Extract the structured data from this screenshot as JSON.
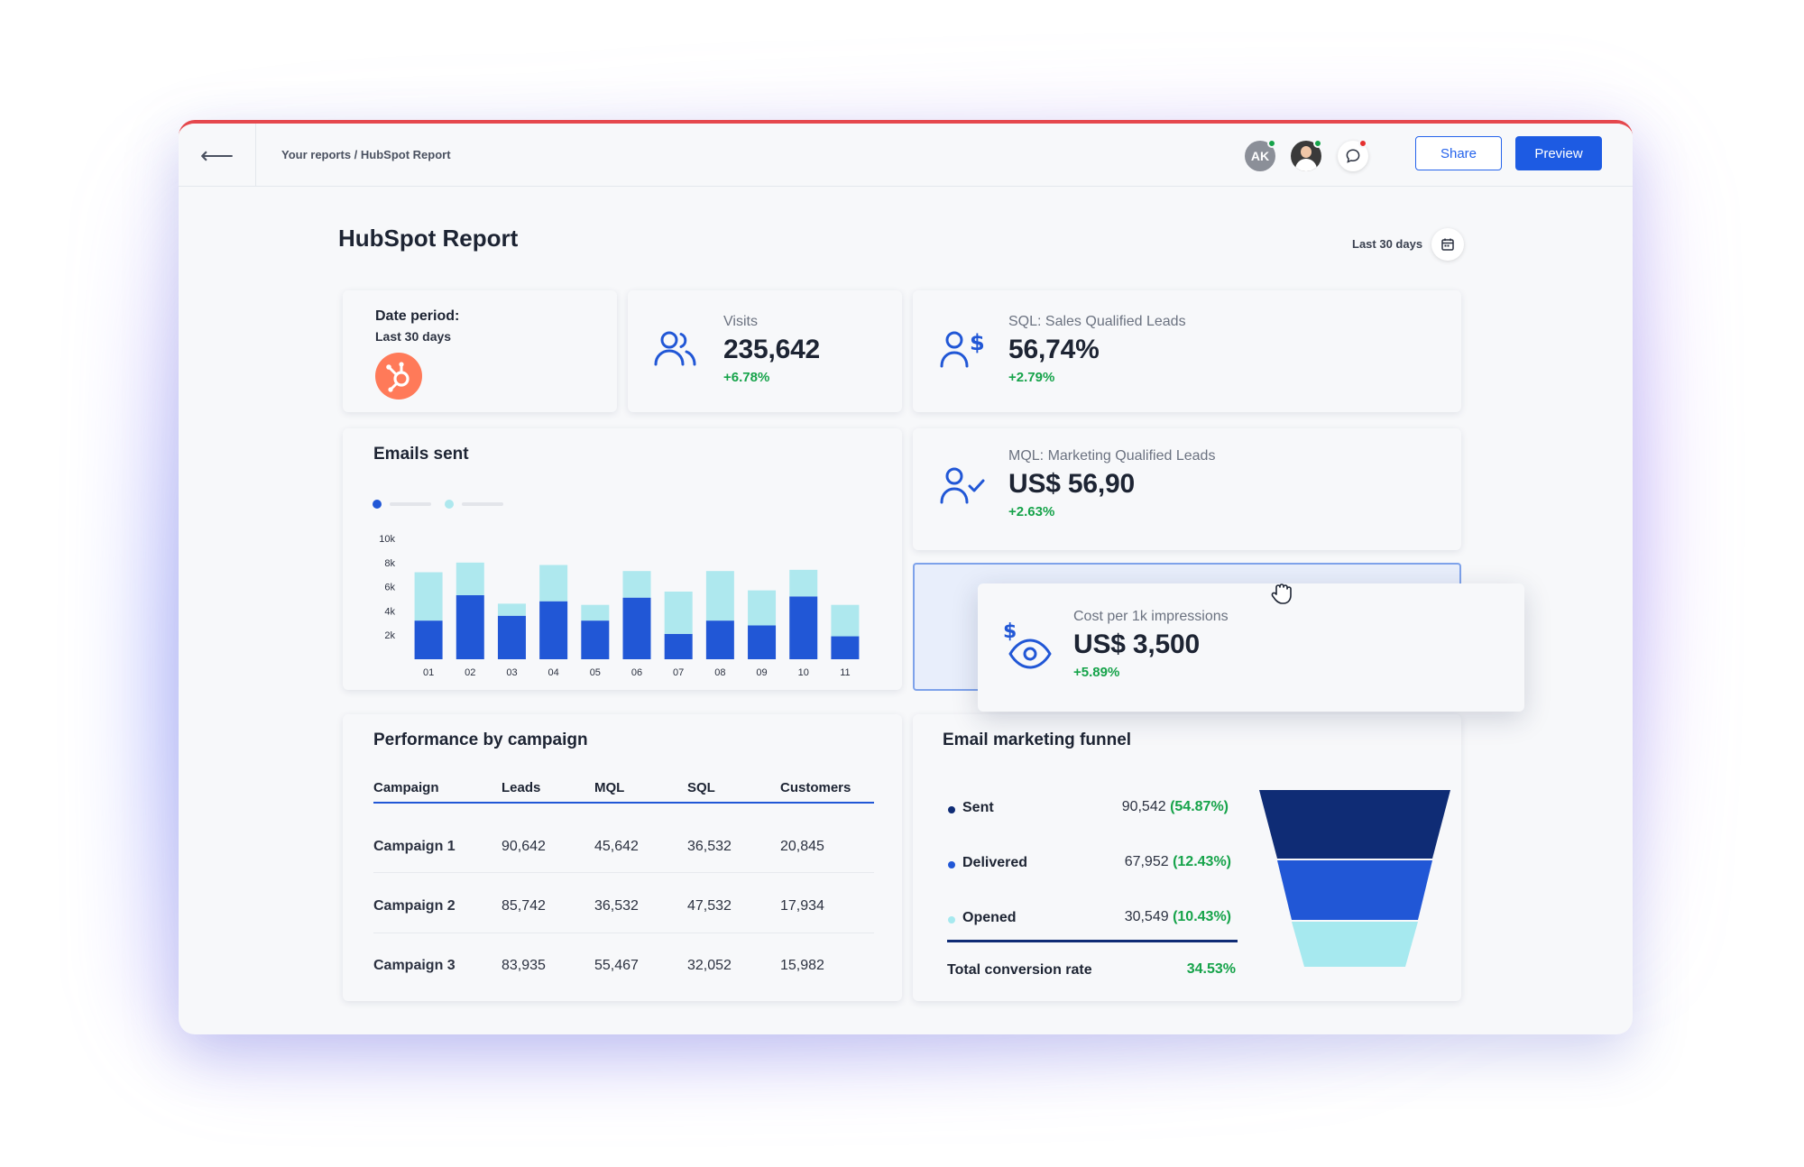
{
  "topbar": {
    "breadcrumb": "Your reports / HubSpot Report",
    "avatar_initials": "AK",
    "share_label": "Share",
    "preview_label": "Preview"
  },
  "report": {
    "title": "HubSpot Report",
    "range_label": "Last 30 days"
  },
  "date_card": {
    "label": "Date period:",
    "value": "Last 30 days",
    "logo_icon": "hubspot-logo-icon"
  },
  "kpis": {
    "visits": {
      "label": "Visits",
      "value": "235,642",
      "delta": "+6.78%",
      "icon": "users-icon"
    },
    "sql": {
      "label": "SQL: Sales Qualified Leads",
      "value": "56,74%",
      "delta": "+2.79%",
      "icon": "user-dollar-icon"
    },
    "mql": {
      "label": "MQL: Marketing Qualified Leads",
      "value": "US$ 56,90",
      "delta": "+2.63%",
      "icon": "user-check-icon"
    },
    "cpm": {
      "label": "Cost per 1k impressions",
      "value": "US$ 3,500",
      "delta": "+5.89%",
      "icon": "dollar-eye-icon"
    }
  },
  "emails_chart": {
    "title": "Emails sent"
  },
  "chart_data": {
    "type": "bar",
    "stacked": true,
    "categories": [
      "01",
      "02",
      "03",
      "04",
      "05",
      "06",
      "07",
      "08",
      "09",
      "10",
      "11"
    ],
    "series": [
      {
        "values": [
          3200,
          5300,
          3600,
          4800,
          3200,
          5100,
          2100,
          3200,
          2800,
          5200,
          1900
        ],
        "color": "#2157d6"
      },
      {
        "values": [
          4000,
          2700,
          1000,
          3000,
          1300,
          2200,
          3500,
          4100,
          2900,
          2200,
          2600
        ],
        "color": "#aee8ee"
      }
    ],
    "y_ticks": [
      "2k",
      "4k",
      "6k",
      "8k",
      "10k"
    ],
    "ylim": [
      0,
      10000
    ],
    "legend_position": "top-left"
  },
  "campaign_table": {
    "title": "Performance by campaign",
    "columns": [
      "Campaign",
      "Leads",
      "MQL",
      "SQL",
      "Customers"
    ],
    "rows": [
      [
        "Campaign 1",
        "90,642",
        "45,642",
        "36,532",
        "20,845"
      ],
      [
        "Campaign 2",
        "85,742",
        "36,532",
        "47,532",
        "17,934"
      ],
      [
        "Campaign 3",
        "83,935",
        "55,467",
        "32,052",
        "15,982"
      ]
    ]
  },
  "funnel": {
    "title": "Email marketing funnel",
    "stages": [
      {
        "label": "Sent",
        "value": "90,542",
        "pct": "(54.87%)",
        "color": "#0f2c75"
      },
      {
        "label": "Delivered",
        "value": "67,952",
        "pct": "(12.43%)",
        "color": "#2157d6"
      },
      {
        "label": "Opened",
        "value": "30,549",
        "pct": "(10.43%)",
        "color": "#a6e9ef"
      }
    ],
    "total_label": "Total conversion rate",
    "total_value": "34.53%"
  },
  "colors": {
    "accent": "#1d5be3",
    "positive": "#16a34a",
    "hubspot": "#ff7a59",
    "top_border": "#e5484d"
  }
}
